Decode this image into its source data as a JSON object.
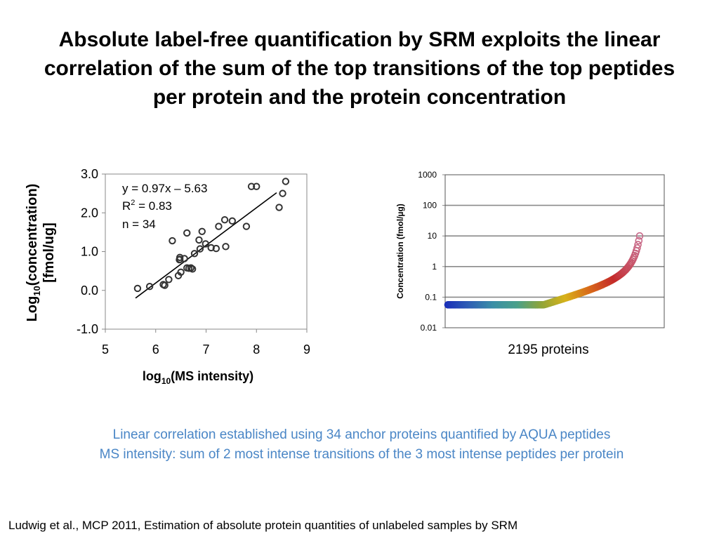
{
  "slide": {
    "title": "Absolute label-free quantification by SRM exploits the linear correlation of the sum of the top transitions of the top peptides per protein and the protein concentration",
    "caption_line1": "Linear correlation established using 34 anchor proteins quantified by AQUA peptides",
    "caption_line2": "MS intensity: sum of 2 most intense transitions of the 3 most intense peptides per protein",
    "citation": "Ludwig et al., MCP 2011, Estimation of absolute protein quantities of unlabeled samples by SRM"
  },
  "colors": {
    "caption": "#4a86c6",
    "scatter_marker": "#333333",
    "fit_line": "#000000"
  },
  "chart_data": [
    {
      "type": "scatter",
      "xlabel": "log10(MS intensity)",
      "ylabel": "Log10(concentration) [fmol/ug]",
      "xlim": [
        5,
        9
      ],
      "ylim": [
        -1,
        3
      ],
      "xticks": [
        "5",
        "6",
        "7",
        "8",
        "9"
      ],
      "yticks": [
        "3.0",
        "2.0",
        "1.0",
        "0.0",
        "-1.0"
      ],
      "grid": false,
      "annotations": [
        "y = 0.97x – 5.63",
        "R2 = 0.83",
        "n = 34"
      ],
      "fit": {
        "slope": 0.97,
        "intercept": -5.63,
        "x_range": [
          5.6,
          8.4
        ]
      },
      "series": [
        {
          "points": [
            [
              5.64,
              0.05
            ],
            [
              5.88,
              0.1
            ],
            [
              6.15,
              0.15
            ],
            [
              6.18,
              0.13
            ],
            [
              6.26,
              0.28
            ],
            [
              6.33,
              1.28
            ],
            [
              6.45,
              0.38
            ],
            [
              6.47,
              0.79
            ],
            [
              6.48,
              0.85
            ],
            [
              6.5,
              0.47
            ],
            [
              6.57,
              0.82
            ],
            [
              6.62,
              0.58
            ],
            [
              6.62,
              1.48
            ],
            [
              6.66,
              0.57
            ],
            [
              6.7,
              0.58
            ],
            [
              6.73,
              0.55
            ],
            [
              6.77,
              0.95
            ],
            [
              6.86,
              1.3
            ],
            [
              6.88,
              1.07
            ],
            [
              6.92,
              1.52
            ],
            [
              6.99,
              1.2
            ],
            [
              7.1,
              1.1
            ],
            [
              7.2,
              1.08
            ],
            [
              7.25,
              1.65
            ],
            [
              7.37,
              1.82
            ],
            [
              7.39,
              1.13
            ],
            [
              7.52,
              1.79
            ],
            [
              7.8,
              1.65
            ],
            [
              7.9,
              2.68
            ],
            [
              8.0,
              2.68
            ],
            [
              8.45,
              2.14
            ],
            [
              8.52,
              2.5
            ],
            [
              8.58,
              2.81
            ],
            [
              6.48,
              0.8
            ]
          ]
        }
      ]
    },
    {
      "type": "scatter",
      "ylabel": "Concentration (fmol/µg)",
      "xlabel": "2195 proteins",
      "y_scale": "log",
      "ylim": [
        0.01,
        1000
      ],
      "yticks": [
        "1000",
        "100",
        "10",
        "1",
        "0.1",
        "0.01"
      ],
      "grid": true,
      "color_gradient": [
        "#1a2fb8",
        "#2f5fb4",
        "#3a8fa6",
        "#4aa08a",
        "#8fa53a",
        "#d8b21a",
        "#d86a1a",
        "#c42a2a",
        "#c86a8a"
      ],
      "n_proteins": 2195
    }
  ]
}
